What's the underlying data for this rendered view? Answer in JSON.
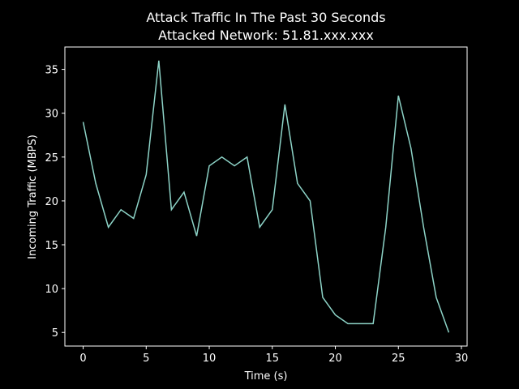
{
  "chart_data": {
    "type": "line",
    "title": [
      "Attack Traffic In The Past 30 Seconds",
      "Attacked Network: 51.81.xxx.xxx"
    ],
    "xlabel": "Time (s)",
    "ylabel": "Incoming Traffic (MBPS)",
    "x": [
      0,
      1,
      2,
      3,
      4,
      5,
      6,
      7,
      8,
      9,
      10,
      11,
      12,
      13,
      14,
      15,
      16,
      17,
      18,
      19,
      20,
      21,
      22,
      23,
      24,
      25,
      26,
      27,
      28,
      29
    ],
    "series": [
      {
        "color": "#8dd3c7",
        "values": [
          29,
          22,
          17,
          19,
          18,
          23,
          36,
          19,
          21,
          16,
          24,
          25,
          24,
          25,
          17,
          19,
          31,
          22,
          20,
          9,
          7,
          6,
          6,
          6,
          17,
          32,
          26,
          17,
          9,
          5
        ]
      }
    ],
    "xlim": [
      -1.45,
      30.45
    ],
    "ylim": [
      3.45,
      37.55
    ],
    "xticks": [
      0,
      5,
      10,
      15,
      20,
      25,
      30
    ],
    "yticks": [
      5,
      10,
      15,
      20,
      25,
      30,
      35
    ]
  }
}
